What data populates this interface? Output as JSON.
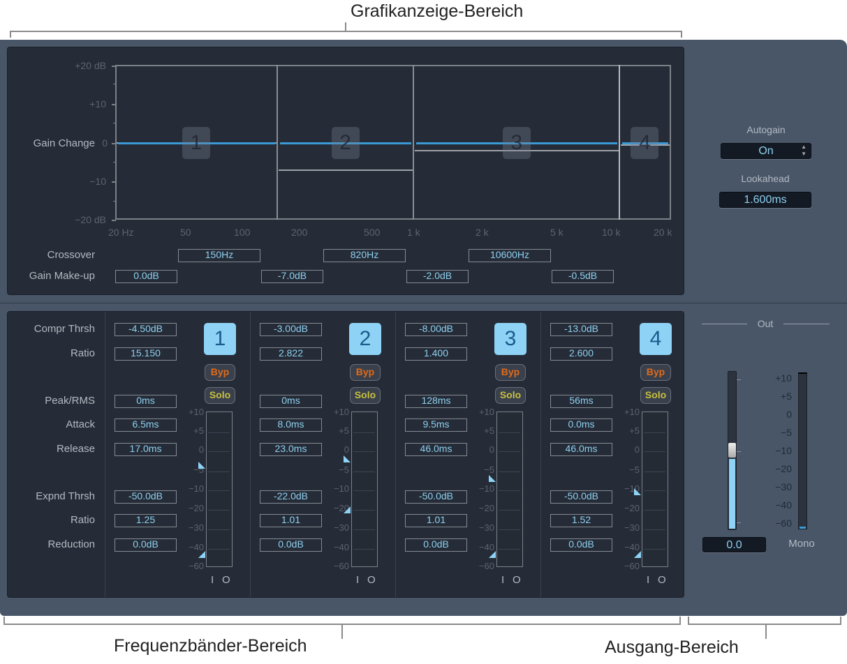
{
  "callouts": {
    "graph": "Grafikanzeige-Bereich",
    "bands": "Frequenzbänder-Bereich",
    "output": "Ausgang-Bereich"
  },
  "graph": {
    "y_axis_label": "Gain Change",
    "y_ticks": [
      "+20 dB",
      "+10",
      "0",
      "−10",
      "−20 dB"
    ],
    "x_ticks": [
      "20 Hz",
      "50",
      "100",
      "200",
      "500",
      "1 k",
      "2 k",
      "5 k",
      "10 k",
      "20 k"
    ],
    "crossover_label": "Crossover",
    "crossovers": [
      "150Hz",
      "820Hz",
      "10600Hz"
    ],
    "gain_makeup_label": "Gain Make-up",
    "gain_makeups": [
      "0.0dB",
      "-7.0dB",
      "-2.0dB",
      "-0.5dB"
    ],
    "band_numbers": [
      "1",
      "2",
      "3",
      "4"
    ],
    "line_color": "#3a9ad6"
  },
  "global": {
    "autogain_label": "Autogain",
    "autogain_value": "On",
    "lookahead_label": "Lookahead",
    "lookahead_value": "1.600ms"
  },
  "band_labels": {
    "compr_thrsh": "Compr Thrsh",
    "ratio": "Ratio",
    "peak_rms": "Peak/RMS",
    "attack": "Attack",
    "release": "Release",
    "expnd_thrsh": "Expnd Thrsh",
    "exp_ratio": "Ratio",
    "reduction": "Reduction"
  },
  "meter_scale": [
    "+10",
    "+5",
    "0",
    "−5",
    "−10",
    "−20",
    "−30",
    "−40",
    "−60"
  ],
  "meter_io": [
    "I",
    "O"
  ],
  "bands": [
    {
      "number": "1",
      "compr_thrsh": "-4.50dB",
      "ratio": "15.150",
      "peak_rms": "0ms",
      "attack": "6.5ms",
      "release": "17.0ms",
      "expnd_thrsh": "-50.0dB",
      "exp_ratio": "1.25",
      "reduction": "0.0dB",
      "byp": "Byp",
      "solo": "Solo",
      "comp_marker_db": -4.5,
      "exp_marker_db": -50
    },
    {
      "number": "2",
      "compr_thrsh": "-3.00dB",
      "ratio": "2.822",
      "peak_rms": "0ms",
      "attack": "8.0ms",
      "release": "23.0ms",
      "expnd_thrsh": "-22.0dB",
      "exp_ratio": "1.01",
      "reduction": "0.0dB",
      "byp": "Byp",
      "solo": "Solo",
      "comp_marker_db": -3,
      "exp_marker_db": -22
    },
    {
      "number": "3",
      "compr_thrsh": "-8.00dB",
      "ratio": "1.400",
      "peak_rms": "128ms",
      "attack": "9.5ms",
      "release": "46.0ms",
      "expnd_thrsh": "-50.0dB",
      "exp_ratio": "1.01",
      "reduction": "0.0dB",
      "byp": "Byp",
      "solo": "Solo",
      "comp_marker_db": -8,
      "exp_marker_db": -50
    },
    {
      "number": "4",
      "compr_thrsh": "-13.0dB",
      "ratio": "2.600",
      "peak_rms": "56ms",
      "attack": "0.0ms",
      "release": "46.0ms",
      "expnd_thrsh": "-50.0dB",
      "exp_ratio": "1.52",
      "reduction": "0.0dB",
      "byp": "Byp",
      "solo": "Solo",
      "comp_marker_db": -13,
      "exp_marker_db": -50
    }
  ],
  "output": {
    "title": "Out",
    "scale": [
      "+10",
      "+5",
      "0",
      "−5",
      "−10",
      "−20",
      "−30",
      "−40",
      "−60"
    ],
    "value": "0.0",
    "mode": "Mono"
  },
  "colors": {
    "accent": "#8ed3f5",
    "byp": "#e06a1a",
    "solo": "#c8c040",
    "panel": "#485668"
  }
}
